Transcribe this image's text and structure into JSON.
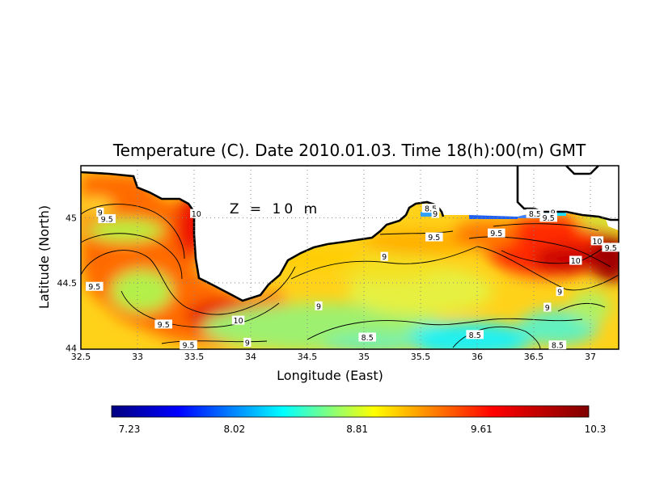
{
  "title": "Temperature (C). Date 2010.01.03. Time 18(h):00(m) GMT",
  "depth_label": "Z = 10 m",
  "xlabel": "Longitude (East)",
  "ylabel": "Latitude (North)",
  "x_ticks": [
    "32.5",
    "33",
    "33.5",
    "34",
    "34.5",
    "35",
    "35.5",
    "36",
    "36.5",
    "37"
  ],
  "y_ticks": [
    "44",
    "44.5",
    "45"
  ],
  "colorbar_ticks": [
    "7.23",
    "8.02",
    "8.81",
    "9.61",
    "10.3"
  ],
  "contour_labels": [
    {
      "text": "9.5",
      "lon": 32.73,
      "lat": 44.99
    },
    {
      "text": "9",
      "lon": 32.67,
      "lat": 45.04
    },
    {
      "text": "10",
      "lon": 33.52,
      "lat": 45.03
    },
    {
      "text": "9.5",
      "lon": 32.62,
      "lat": 44.47
    },
    {
      "text": "9.5",
      "lon": 33.23,
      "lat": 44.18
    },
    {
      "text": "10",
      "lon": 33.89,
      "lat": 44.21
    },
    {
      "text": "9",
      "lon": 33.97,
      "lat": 44.04
    },
    {
      "text": "9.5",
      "lon": 33.45,
      "lat": 44.02
    },
    {
      "text": "9",
      "lon": 34.6,
      "lat": 44.32
    },
    {
      "text": "8.5",
      "lon": 35.03,
      "lat": 44.08
    },
    {
      "text": "9",
      "lon": 35.18,
      "lat": 44.7
    },
    {
      "text": "8.5",
      "lon": 35.59,
      "lat": 45.07
    },
    {
      "text": "9",
      "lon": 35.63,
      "lat": 45.03
    },
    {
      "text": "9.5",
      "lon": 35.62,
      "lat": 44.85
    },
    {
      "text": "9.5",
      "lon": 36.17,
      "lat": 44.88
    },
    {
      "text": "8.5",
      "lon": 36.51,
      "lat": 45.03
    },
    {
      "text": "9",
      "lon": 36.67,
      "lat": 45.04
    },
    {
      "text": "9.5",
      "lon": 36.63,
      "lat": 45.0
    },
    {
      "text": "10",
      "lon": 36.87,
      "lat": 44.67
    },
    {
      "text": "10",
      "lon": 37.06,
      "lat": 44.82
    },
    {
      "text": "9.5",
      "lon": 37.18,
      "lat": 44.77
    },
    {
      "text": "9",
      "lon": 36.73,
      "lat": 44.43
    },
    {
      "text": "9",
      "lon": 36.62,
      "lat": 44.31
    },
    {
      "text": "8.5",
      "lon": 35.98,
      "lat": 44.1
    },
    {
      "text": "8.5",
      "lon": 36.71,
      "lat": 44.02
    }
  ],
  "colors": {
    "cold": "#00007f",
    "cyan": "#00ffff",
    "yellow": "#ffff00",
    "red": "#ff0000",
    "hot": "#7f0000",
    "land": "#ffffff"
  }
}
